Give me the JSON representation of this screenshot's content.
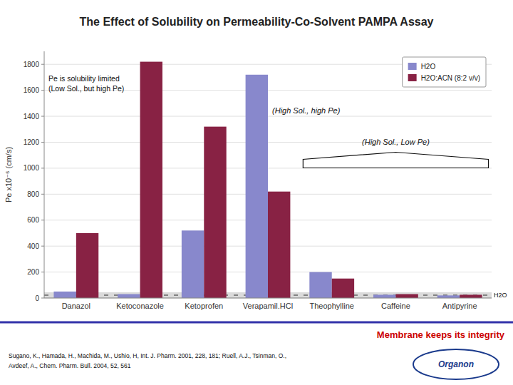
{
  "chart_data": {
    "type": "bar",
    "title": "The Effect of Solubility on Permeability-Co-Solvent PAMPA Assay",
    "y_label": "Pe x10⁻⁶ (cm/s)",
    "categories": [
      "Danazol",
      "Ketoconazole",
      "Ketoprofen",
      "Verapamil.HCl",
      "Theophylline",
      "Caffeine",
      "Antipyrine"
    ],
    "series": [
      {
        "name": "H2O",
        "color": "#8888cc",
        "values": [
          50,
          30,
          520,
          1720,
          200,
          25,
          20
        ]
      },
      {
        "name": "H2O:ACN (8:2 v/v)",
        "color": "#882244",
        "values": [
          500,
          1820,
          1320,
          820,
          150,
          30,
          25
        ]
      }
    ],
    "ylim": [
      0,
      1900
    ],
    "yticks": [
      0,
      200,
      400,
      600,
      800,
      1000,
      1200,
      1400,
      1600,
      1800
    ],
    "grid": true,
    "legend": "upper right",
    "annotations": [
      "Pe is solubility limited",
      "(Low Sol., but high Pe)",
      "(High Sol., high Pe)",
      "(High Sol., Low Pe)",
      "H2O",
      "Membrane keeps its integrity",
      "Sugano, K., Hamada, H., Machida, M., Ushio, H, Int. J. Pharm. 2001, 228, 181; Ruell, A.J., Tsinman, O.,",
      "Avdeef, A., Chem. Pharm. Bull. 2004, 52, 561",
      "Organon"
    ]
  }
}
